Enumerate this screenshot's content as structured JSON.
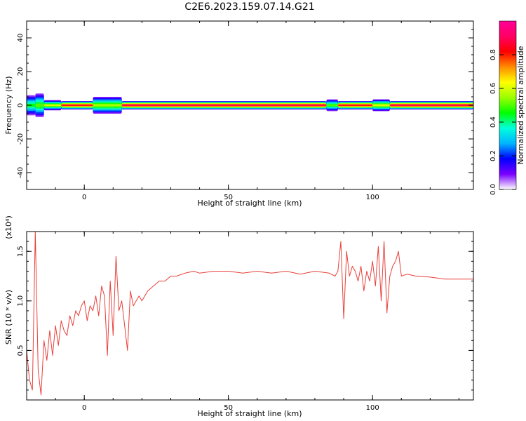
{
  "title": "C2E6.2023.159.07.14.G21",
  "chart_data": [
    {
      "type": "heatmap",
      "title": "",
      "xlabel": "Height of straight line (km)",
      "ylabel": "Frequency (Hz)",
      "xlim": [
        -20,
        135
      ],
      "ylim": [
        -50,
        50
      ],
      "xticks": [
        0,
        50,
        100
      ],
      "yticks": [
        -40,
        -20,
        0,
        20,
        40
      ],
      "colorbar": {
        "label": "Normalized spectral amplitude",
        "range": [
          0,
          1
        ],
        "ticks": [
          0.0,
          0.2,
          0.4,
          0.6,
          0.8
        ],
        "colormap": "rainbow",
        "stops": [
          "#ffffff",
          "#7a00ff",
          "#0000ff",
          "#00b4ff",
          "#00ffdc",
          "#00ff00",
          "#9bff00",
          "#ffff00",
          "#ff8c00",
          "#ff0000",
          "#ff0064",
          "#ff0096"
        ]
      },
      "band": {
        "center_frequency_hz": 0,
        "segments": [
          {
            "x": [
              -20,
              -17
            ],
            "half_width_hz": 6,
            "peak": 0.45
          },
          {
            "x": [
              -17,
              -14
            ],
            "half_width_hz": 7,
            "peak": 0.5
          },
          {
            "x": [
              -14,
              -8
            ],
            "half_width_hz": 3,
            "peak": 0.6
          },
          {
            "x": [
              -8,
              3
            ],
            "half_width_hz": 2.5,
            "peak": 0.85
          },
          {
            "x": [
              3,
              13
            ],
            "half_width_hz": 5,
            "peak": 0.55
          },
          {
            "x": [
              13,
              84
            ],
            "half_width_hz": 2.5,
            "peak": 0.9
          },
          {
            "x": [
              84,
              88
            ],
            "half_width_hz": 3.5,
            "peak": 0.5
          },
          {
            "x": [
              88,
              100
            ],
            "half_width_hz": 2.5,
            "peak": 0.85
          },
          {
            "x": [
              100,
              106
            ],
            "half_width_hz": 3.5,
            "peak": 0.6
          },
          {
            "x": [
              106,
              135
            ],
            "half_width_hz": 2.5,
            "peak": 0.9
          }
        ]
      }
    },
    {
      "type": "line",
      "title": "",
      "xlabel": "Height of straight line (km)",
      "ylabel": "SNR (10 * v/v)",
      "scale_label": "(x10⁴)",
      "xlim": [
        -20,
        135
      ],
      "ylim": [
        0,
        1.7
      ],
      "xticks": [
        0,
        50,
        100
      ],
      "yticks": [
        0.5,
        1.0,
        1.5
      ],
      "ytick_labels": [
        "0.5",
        "1.0",
        "1.5"
      ],
      "series": [
        {
          "color": "#e8403a",
          "x": [
            -20,
            -19,
            -18,
            -17,
            -16,
            -15,
            -14,
            -13,
            -12,
            -11,
            -10,
            -9,
            -8,
            -7,
            -6,
            -5,
            -4,
            -3,
            -2,
            -1,
            0,
            1,
            2,
            3,
            4,
            5,
            6,
            7,
            8,
            9,
            10,
            11,
            12,
            13,
            14,
            15,
            16,
            17,
            18,
            19,
            20,
            22,
            24,
            26,
            28,
            30,
            32,
            35,
            38,
            40,
            45,
            50,
            55,
            60,
            65,
            70,
            75,
            80,
            85,
            87,
            88,
            89,
            90,
            91,
            92,
            93,
            94,
            95,
            96,
            97,
            98,
            99,
            100,
            101,
            102,
            103,
            104,
            105,
            106,
            107,
            108,
            109,
            110,
            112,
            115,
            120,
            125,
            130,
            135
          ],
          "y": [
            0.5,
            0.2,
            0.1,
            1.7,
            0.3,
            0.05,
            0.6,
            0.4,
            0.7,
            0.45,
            0.75,
            0.55,
            0.8,
            0.7,
            0.65,
            0.85,
            0.75,
            0.9,
            0.85,
            0.95,
            1.0,
            0.8,
            0.95,
            0.9,
            1.05,
            0.85,
            1.15,
            1.05,
            0.45,
            1.2,
            0.65,
            1.45,
            0.9,
            1.0,
            0.75,
            0.5,
            1.1,
            0.95,
            1.0,
            1.05,
            1.0,
            1.1,
            1.15,
            1.2,
            1.2,
            1.25,
            1.25,
            1.28,
            1.3,
            1.28,
            1.3,
            1.3,
            1.28,
            1.3,
            1.28,
            1.3,
            1.27,
            1.3,
            1.28,
            1.25,
            1.3,
            1.6,
            0.82,
            1.5,
            1.25,
            1.35,
            1.3,
            1.2,
            1.35,
            1.1,
            1.3,
            1.2,
            1.4,
            1.15,
            1.55,
            1.0,
            1.6,
            0.88,
            1.25,
            1.35,
            1.4,
            1.5,
            1.25,
            1.27,
            1.25,
            1.24,
            1.22,
            1.22,
            1.22
          ]
        }
      ]
    }
  ]
}
